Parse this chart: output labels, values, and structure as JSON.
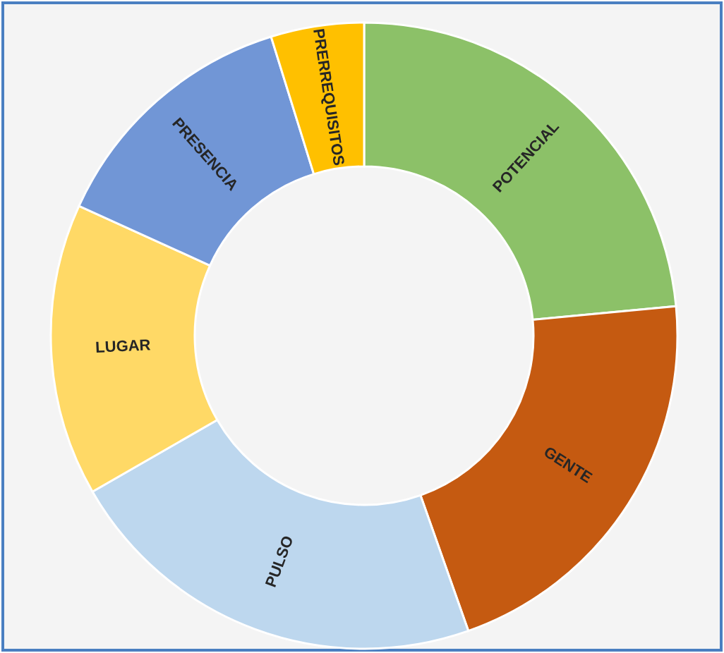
{
  "chart_data": {
    "type": "donut",
    "categories": [
      "POTENCIAL",
      "GENTE",
      "PULSO",
      "LUGAR",
      "PRESENCIA",
      "PRERREQUISITOS"
    ],
    "values": [
      23.5,
      21.1,
      22.1,
      15.1,
      13.4,
      4.8
    ],
    "colors": [
      "#8cc168",
      "#c55a11",
      "#bdd7ee",
      "#ffd966",
      "#7196d6",
      "#ffc000"
    ]
  }
}
